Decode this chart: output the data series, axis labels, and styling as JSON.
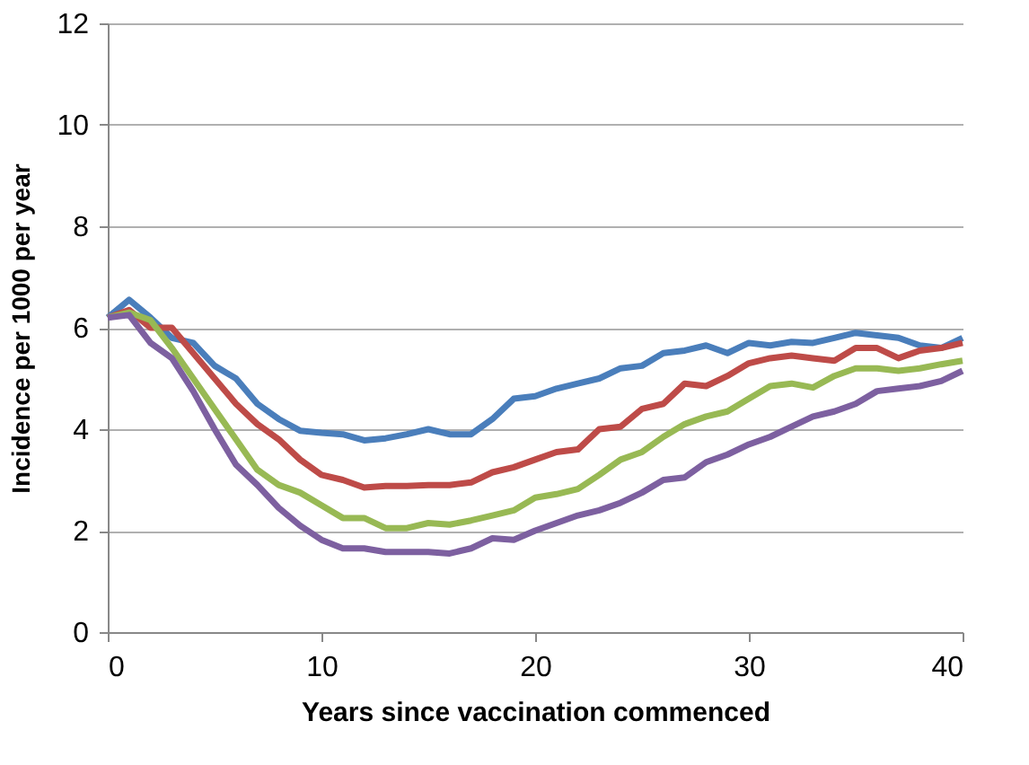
{
  "chart_data": {
    "type": "line",
    "xlabel": "Years since vaccination commenced",
    "ylabel": "Incidence per 1000 per year",
    "x": [
      0,
      1,
      2,
      3,
      4,
      5,
      6,
      7,
      8,
      9,
      10,
      11,
      12,
      13,
      14,
      15,
      16,
      17,
      18,
      19,
      20,
      21,
      22,
      23,
      24,
      25,
      26,
      27,
      28,
      29,
      30,
      31,
      32,
      33,
      34,
      35,
      36,
      37,
      38,
      39,
      40
    ],
    "series": [
      {
        "color": "#4a7ebb",
        "values": [
          6.2,
          6.55,
          6.2,
          5.8,
          5.7,
          5.25,
          5.0,
          4.5,
          4.2,
          3.97,
          3.93,
          3.9,
          3.78,
          3.82,
          3.9,
          4.0,
          3.9,
          3.9,
          4.2,
          4.6,
          4.65,
          4.8,
          4.9,
          5.0,
          5.2,
          5.25,
          5.5,
          5.55,
          5.65,
          5.5,
          5.7,
          5.65,
          5.72,
          5.7,
          5.8,
          5.9,
          5.85,
          5.8,
          5.65,
          5.6,
          5.8
        ]
      },
      {
        "color": "#be4b48",
        "values": [
          6.2,
          6.35,
          6.0,
          6.0,
          5.5,
          5.0,
          4.5,
          4.1,
          3.8,
          3.4,
          3.1,
          3.0,
          2.85,
          2.88,
          2.88,
          2.9,
          2.9,
          2.95,
          3.15,
          3.25,
          3.4,
          3.55,
          3.6,
          4.0,
          4.05,
          4.4,
          4.5,
          4.9,
          4.85,
          5.05,
          5.3,
          5.4,
          5.45,
          5.4,
          5.35,
          5.6,
          5.6,
          5.4,
          5.55,
          5.6,
          5.7
        ]
      },
      {
        "color": "#98b954",
        "values": [
          6.2,
          6.3,
          6.15,
          5.6,
          5.0,
          4.4,
          3.8,
          3.2,
          2.9,
          2.75,
          2.5,
          2.25,
          2.25,
          2.05,
          2.05,
          2.15,
          2.12,
          2.2,
          2.3,
          2.4,
          2.65,
          2.72,
          2.82,
          3.1,
          3.4,
          3.55,
          3.85,
          4.1,
          4.25,
          4.35,
          4.6,
          4.85,
          4.9,
          4.82,
          5.05,
          5.2,
          5.2,
          5.15,
          5.2,
          5.28,
          5.35
        ]
      },
      {
        "color": "#7d60a0",
        "values": [
          6.2,
          6.25,
          5.7,
          5.4,
          4.75,
          4.0,
          3.3,
          2.9,
          2.45,
          2.1,
          1.82,
          1.65,
          1.65,
          1.58,
          1.58,
          1.58,
          1.55,
          1.65,
          1.85,
          1.82,
          2.0,
          2.15,
          2.3,
          2.4,
          2.55,
          2.75,
          3.0,
          3.05,
          3.35,
          3.5,
          3.7,
          3.85,
          4.05,
          4.25,
          4.35,
          4.5,
          4.75,
          4.8,
          4.85,
          4.95,
          5.15
        ]
      }
    ],
    "xlim": [
      0,
      40
    ],
    "xticks": [
      0,
      10,
      20,
      30,
      40
    ],
    "ylim": [
      0,
      12
    ],
    "yticks": [
      0,
      2,
      4,
      6,
      8,
      10,
      12
    ],
    "grid": "y",
    "legend": false,
    "marker": "none",
    "line_style": "solid"
  }
}
